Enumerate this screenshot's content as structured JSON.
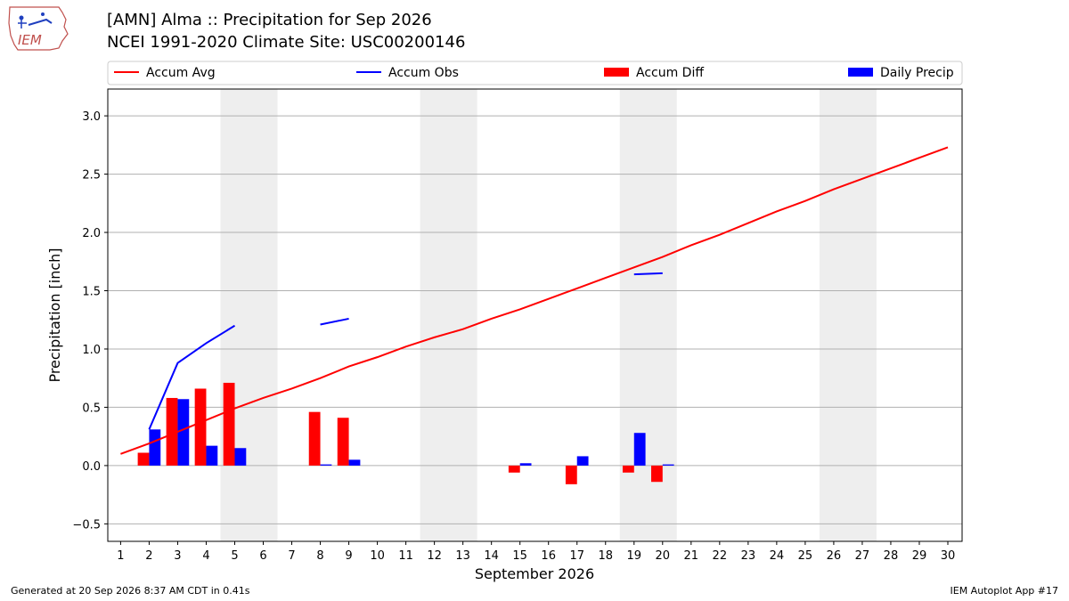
{
  "header": {
    "title_line1": "[AMN] Alma :: Precipitation for Sep 2026",
    "title_line2": "NCEI 1991-2020 Climate Site: USC00200146",
    "logo_text": "IEM"
  },
  "footer": {
    "left": "Generated at 20 Sep 2026 8:37 AM CDT in 0.41s",
    "right": "IEM Autoplot App #17"
  },
  "colors": {
    "avg": "#ff0000",
    "obs": "#0000ff",
    "diff": "#ff0000",
    "daily": "#0000ff",
    "weekend": "#eeeeee",
    "grid": "#b0b0b0"
  },
  "chart_data": {
    "type": "bar",
    "xlabel": "September 2026",
    "ylabel": "Precipitation [inch]",
    "ylim": [
      -0.65,
      3.23
    ],
    "xlim": [
      0.55,
      30.5
    ],
    "yticks": [
      -0.5,
      0.0,
      0.5,
      1.0,
      1.5,
      2.0,
      2.5,
      3.0
    ],
    "ytick_labels": [
      "−0.5",
      "0.0",
      "0.5",
      "1.0",
      "1.5",
      "2.0",
      "2.5",
      "3.0"
    ],
    "xticks": [
      1,
      2,
      3,
      4,
      5,
      6,
      7,
      8,
      9,
      10,
      11,
      12,
      13,
      14,
      15,
      16,
      17,
      18,
      19,
      20,
      21,
      22,
      23,
      24,
      25,
      26,
      27,
      28,
      29,
      30
    ],
    "grid": "horizontal",
    "legend_position": "top",
    "legend": [
      {
        "label": "Accum Avg",
        "kind": "line",
        "color": "#ff0000"
      },
      {
        "label": "Accum Obs",
        "kind": "line",
        "color": "#0000ff"
      },
      {
        "label": "Accum Diff",
        "kind": "bar",
        "color": "#ff0000"
      },
      {
        "label": "Daily Precip",
        "kind": "bar",
        "color": "#0000ff"
      }
    ],
    "weekend_days": [
      5,
      6,
      12,
      13,
      19,
      20,
      26,
      27
    ],
    "accum_avg": {
      "x": [
        1,
        2,
        3,
        4,
        5,
        6,
        7,
        8,
        9,
        10,
        11,
        12,
        13,
        14,
        15,
        16,
        17,
        18,
        19,
        20,
        21,
        22,
        23,
        24,
        25,
        26,
        27,
        28,
        29,
        30
      ],
      "y": [
        0.1,
        0.19,
        0.29,
        0.39,
        0.49,
        0.58,
        0.66,
        0.75,
        0.85,
        0.93,
        1.02,
        1.1,
        1.17,
        1.26,
        1.34,
        1.43,
        1.52,
        1.61,
        1.7,
        1.79,
        1.89,
        1.98,
        2.08,
        2.18,
        2.27,
        2.37,
        2.46,
        2.55,
        2.64,
        2.73
      ]
    },
    "accum_obs_segments": [
      {
        "x": [
          2,
          3,
          4,
          5
        ],
        "y": [
          0.31,
          0.88,
          1.05,
          1.2
        ]
      },
      {
        "x": [
          8,
          9
        ],
        "y": [
          1.21,
          1.26
        ]
      },
      {
        "x": [
          19,
          20
        ],
        "y": [
          1.64,
          1.65
        ]
      }
    ],
    "accum_diff": {
      "x": [
        2,
        3,
        4,
        5,
        8,
        9,
        15,
        17,
        19,
        20
      ],
      "y": [
        0.11,
        0.58,
        0.66,
        0.71,
        0.46,
        0.41,
        -0.06,
        -0.16,
        -0.06,
        -0.14
      ]
    },
    "daily_precip": {
      "x": [
        2,
        3,
        4,
        5,
        8,
        9,
        15,
        17,
        19,
        20
      ],
      "y": [
        0.31,
        0.57,
        0.17,
        0.15,
        0.01,
        0.05,
        0.02,
        0.08,
        0.28,
        0.01
      ]
    }
  }
}
